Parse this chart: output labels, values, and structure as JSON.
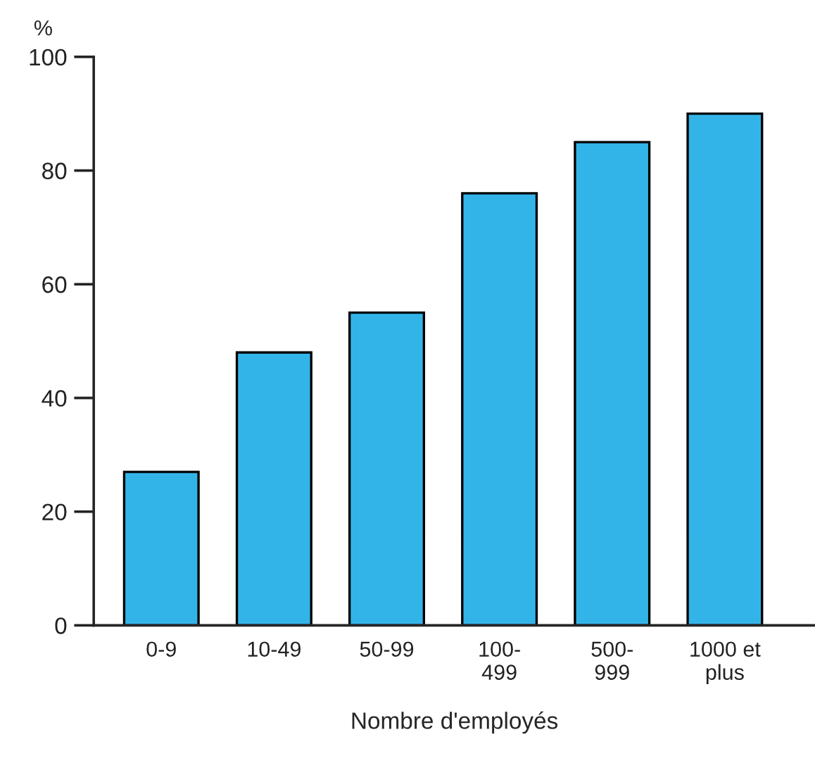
{
  "chart_data": {
    "type": "bar",
    "categories": [
      "0-9",
      "10-49",
      "50-99",
      "100-\n499",
      "500-\n999",
      "1000 et\nplus"
    ],
    "values": [
      27,
      48,
      55,
      76,
      85,
      90
    ],
    "color": "#33b4e8",
    "xlabel": "Nombre d'employés",
    "ylabel": "%",
    "ylim": [
      0,
      100
    ],
    "yticks": [
      0,
      20,
      40,
      60,
      80,
      100
    ],
    "grid": false
  }
}
